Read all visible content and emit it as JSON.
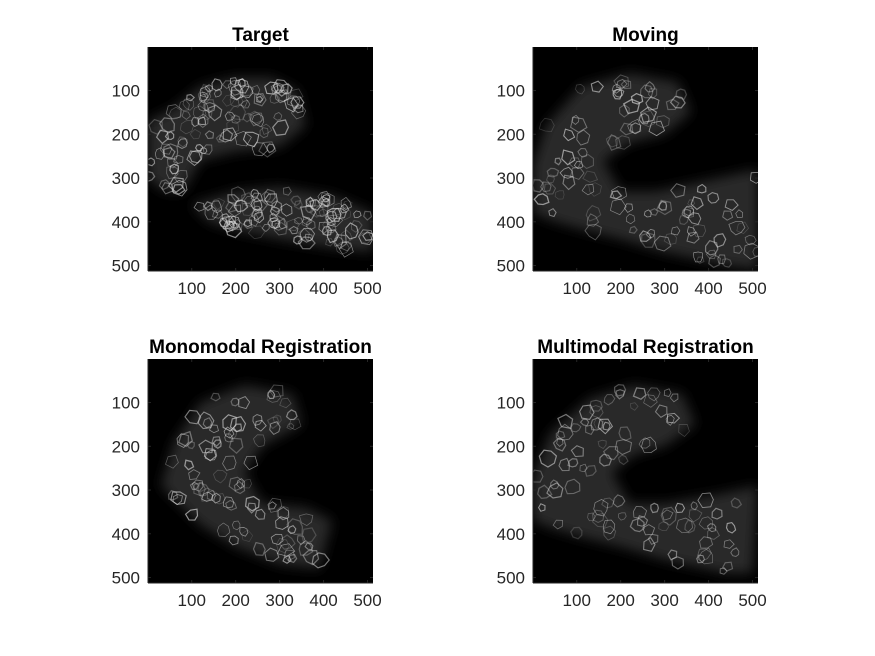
{
  "chart_data": [
    {
      "type": "image",
      "title": "Target",
      "xlim": [
        0.5,
        512.5
      ],
      "ylim": [
        0.5,
        512.5
      ],
      "xticks": [
        100,
        200,
        300,
        400,
        500
      ],
      "yticks": [
        100,
        200,
        300,
        400,
        500
      ],
      "yaxis_direction": "reverse",
      "colormap": "gray"
    },
    {
      "type": "image",
      "title": "Moving",
      "xlim": [
        0.5,
        512.5
      ],
      "ylim": [
        0.5,
        512.5
      ],
      "xticks": [
        100,
        200,
        300,
        400,
        500
      ],
      "yticks": [
        100,
        200,
        300,
        400,
        500
      ],
      "yaxis_direction": "reverse",
      "colormap": "gray"
    },
    {
      "type": "image",
      "title": "Monomodal Registration",
      "xlim": [
        0.5,
        512.5
      ],
      "ylim": [
        0.5,
        512.5
      ],
      "xticks": [
        100,
        200,
        300,
        400,
        500
      ],
      "yticks": [
        100,
        200,
        300,
        400,
        500
      ],
      "yaxis_direction": "reverse",
      "colormap": "gray"
    },
    {
      "type": "image",
      "title": "Multimodal Registration",
      "xlim": [
        0.5,
        512.5
      ],
      "ylim": [
        0.5,
        512.5
      ],
      "xticks": [
        100,
        200,
        300,
        400,
        500
      ],
      "yticks": [
        100,
        200,
        300,
        400,
        500
      ],
      "yaxis_direction": "reverse",
      "colormap": "gray"
    }
  ],
  "colors": {
    "background": "#ffffff",
    "image_background": "#000000",
    "axis": "#262626",
    "tissue_glow": "#4a4a4a",
    "cell_edge": "#d8d8d8"
  }
}
